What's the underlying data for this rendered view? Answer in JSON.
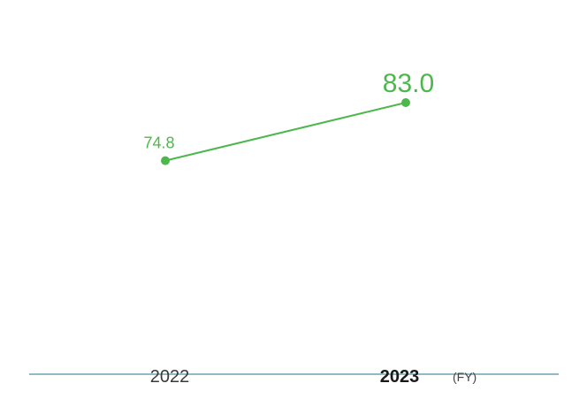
{
  "chart_data": {
    "type": "line",
    "categories": [
      "2022",
      "2023"
    ],
    "series": [
      {
        "values": [
          74.8,
          83.0
        ]
      }
    ],
    "data_labels": [
      "74.8",
      "83.0"
    ],
    "x_unit_label": "(FY)",
    "highlight_index": 1,
    "ylim": [
      0,
      100
    ],
    "grid": false,
    "legend": "none",
    "colors": {
      "line": "#4cb84c",
      "label": "#4cb84c",
      "axis": "#4f8fa3",
      "tick_text": "#3a3a3a"
    }
  }
}
